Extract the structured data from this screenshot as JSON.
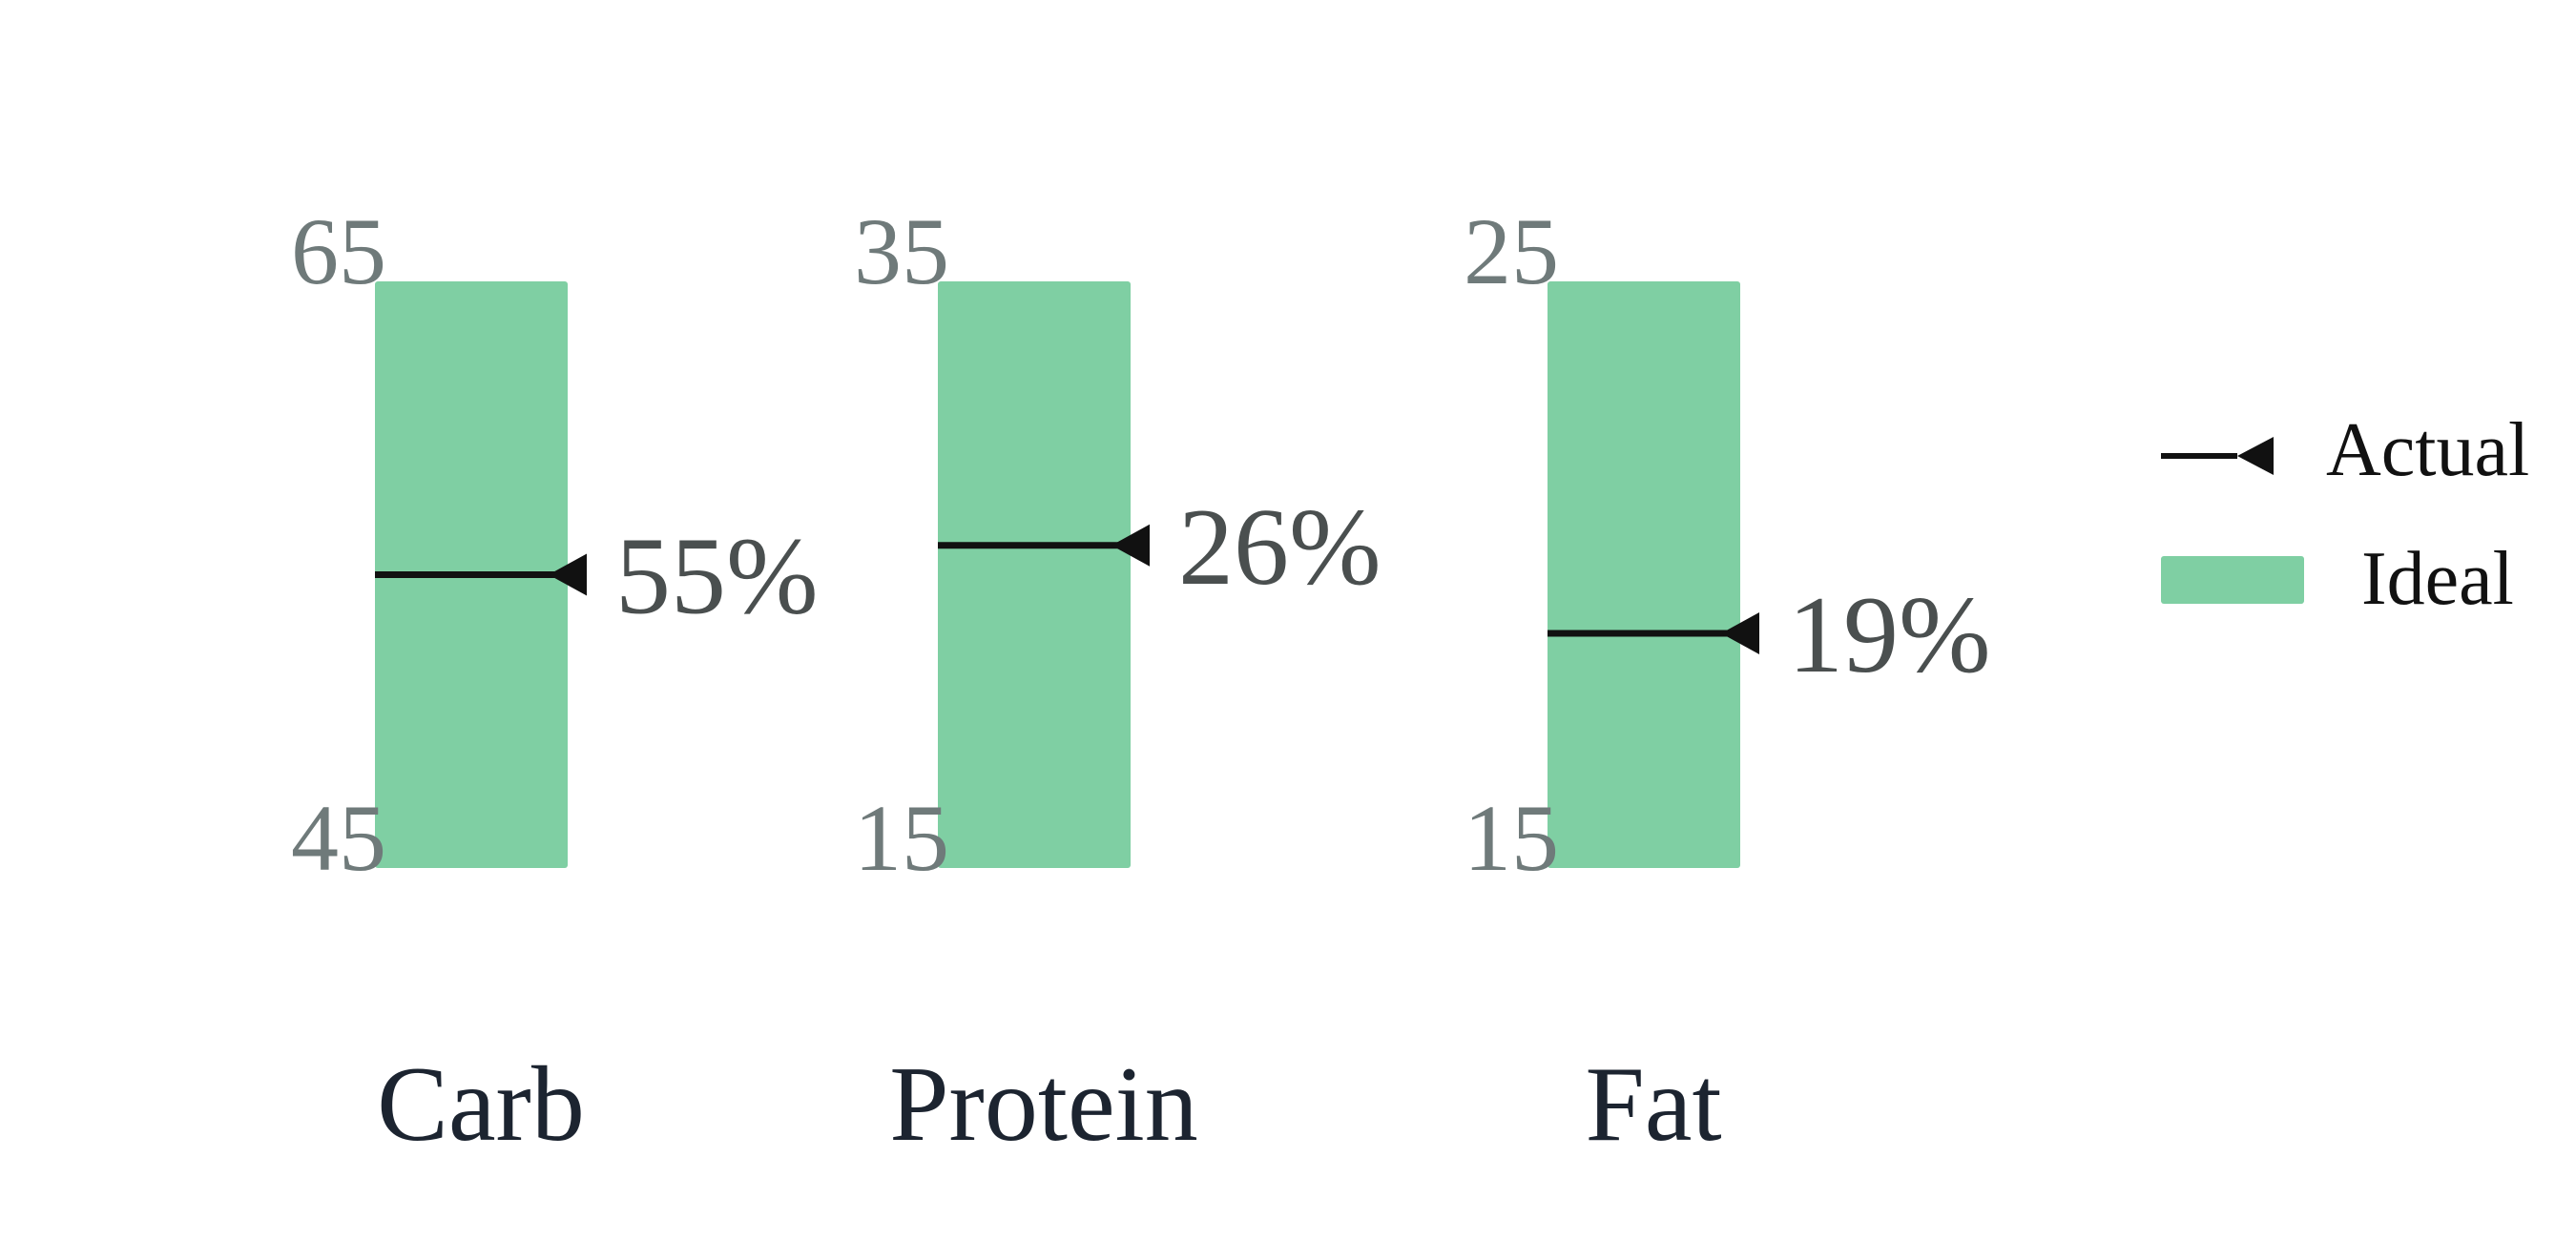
{
  "chart_data": {
    "type": "bar",
    "categories": [
      "Carb",
      "Protein",
      "Fat"
    ],
    "series": [
      {
        "name": "Ideal",
        "ranges": [
          [
            45,
            65
          ],
          [
            15,
            35
          ],
          [
            15,
            25
          ]
        ]
      },
      {
        "name": "Actual",
        "values": [
          55,
          26,
          19
        ]
      }
    ],
    "value_labels": [
      "55%",
      "26%",
      "19%"
    ],
    "range_labels": [
      {
        "min": "45",
        "max": "65"
      },
      {
        "min": "15",
        "max": "35"
      },
      {
        "min": "15",
        "max": "25"
      }
    ],
    "legend": {
      "placement": "right",
      "entries": [
        "Actual",
        "Ideal"
      ]
    },
    "colors": {
      "ideal": "#7fcfa3",
      "actual": "#111111",
      "range_label": "#6f7a7a",
      "value_label": "#4a4f4f",
      "category_label": "#1c2430"
    },
    "title": "",
    "xlabel": "",
    "ylabel": ""
  }
}
